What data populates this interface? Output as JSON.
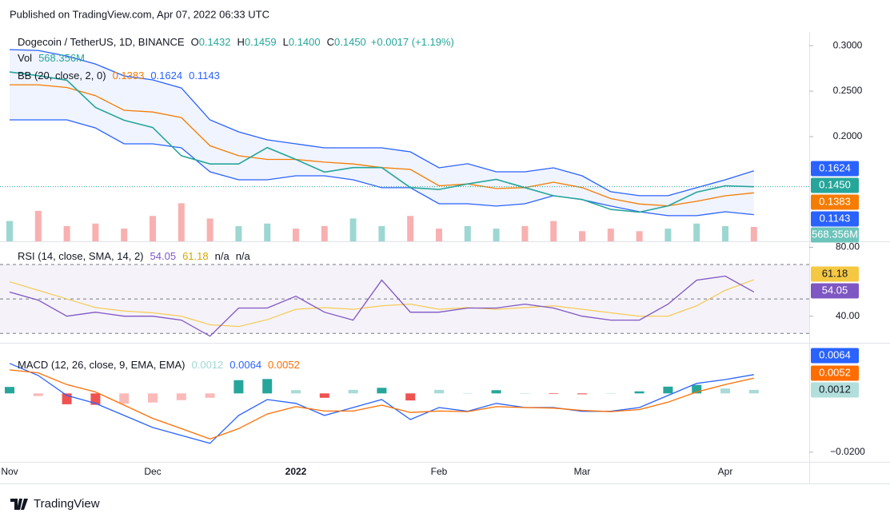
{
  "header": {
    "published": "Published on TradingView.com, Apr 07, 2022 06:33 UTC"
  },
  "footer": {
    "brand": "TradingView"
  },
  "chart_data": [
    {
      "type": "line",
      "title": "Dogecoin / TetherUS, 1D, BINANCE",
      "ohlc": [
        {
          "key": "O",
          "value": "0.1432"
        },
        {
          "key": "H",
          "value": "0.1459"
        },
        {
          "key": "L",
          "value": "0.1400"
        },
        {
          "key": "C",
          "value": "0.1450"
        }
      ],
      "change": "+0.0017 (+1.19%)",
      "categories": [
        "Nov",
        null,
        null,
        null,
        null,
        "Dec",
        null,
        null,
        null,
        null,
        "2022",
        null,
        null,
        null,
        null,
        "Feb",
        null,
        null,
        null,
        null,
        "Mar",
        null,
        null,
        null,
        null,
        "Apr",
        null
      ],
      "color": "#26a69a",
      "values": [
        0.271,
        0.267,
        0.262,
        0.232,
        0.218,
        0.21,
        0.179,
        0.17,
        0.17,
        0.188,
        0.175,
        0.161,
        0.166,
        0.166,
        0.144,
        0.142,
        0.148,
        0.153,
        0.144,
        0.135,
        0.131,
        0.12,
        0.117,
        0.124,
        0.139,
        0.146,
        0.145
      ],
      "value_labels": [
        null,
        null,
        null,
        null,
        null,
        null,
        null,
        null,
        null,
        null,
        null,
        null,
        null,
        null,
        null,
        null,
        null,
        null,
        null,
        null,
        null,
        null,
        null,
        null,
        null,
        null,
        "0.1450"
      ],
      "ylim": [
        0.085,
        0.315
      ],
      "yticks": [
        {
          "value": 0.3,
          "label": "0.3000"
        },
        {
          "value": 0.25,
          "label": "0.2500"
        },
        {
          "value": 0.2,
          "label": "0.2000"
        }
      ],
      "bb": {
        "name": "BB (20, close, 2, 0)",
        "series": [
          {
            "color": "#f57c00",
            "values": [
              0.257,
              0.257,
              0.254,
              0.245,
              0.229,
              0.227,
              0.221,
              0.19,
              0.179,
              0.175,
              0.175,
              0.172,
              0.17,
              0.166,
              0.164,
              0.146,
              0.148,
              0.143,
              0.144,
              0.15,
              0.144,
              0.132,
              0.126,
              0.124,
              0.129,
              0.135,
              0.1383
            ],
            "value_labels": [
              null,
              null,
              null,
              null,
              null,
              null,
              null,
              null,
              null,
              null,
              null,
              null,
              null,
              null,
              null,
              null,
              null,
              null,
              null,
              null,
              null,
              null,
              null,
              null,
              null,
              null,
              "0.1383"
            ]
          },
          {
            "color": "#2962ff",
            "values": [
              0.2956,
              0.2947,
              0.2886,
              0.2798,
              0.2667,
              0.2623,
              0.2535,
              0.2184,
              0.2053,
              0.1965,
              0.1921,
              0.1877,
              0.1877,
              0.1877,
              0.1833,
              0.1658,
              0.1702,
              0.1614,
              0.1614,
              0.1658,
              0.157,
              0.1395,
              0.1351,
              0.1351,
              0.1439,
              0.1526,
              0.1624
            ],
            "value_labels": [
              null,
              null,
              null,
              null,
              null,
              null,
              null,
              null,
              null,
              null,
              null,
              null,
              null,
              null,
              null,
              null,
              null,
              null,
              null,
              null,
              null,
              null,
              null,
              null,
              null,
              null,
              "0.1624"
            ]
          },
          {
            "color": "#2962ff",
            "values": [
              0.2184,
              0.2184,
              0.2184,
              0.2096,
              0.1921,
              0.1921,
              0.1877,
              0.1614,
              0.1526,
              0.1526,
              0.157,
              0.157,
              0.1526,
              0.1439,
              0.1439,
              0.1263,
              0.1263,
              0.1237,
              0.1263,
              0.1351,
              0.1307,
              0.1237,
              0.1175,
              0.1132,
              0.1132,
              0.1175,
              0.1143
            ],
            "value_labels": [
              null,
              null,
              null,
              null,
              null,
              null,
              null,
              null,
              null,
              null,
              null,
              null,
              null,
              null,
              null,
              null,
              null,
              null,
              null,
              null,
              null,
              null,
              null,
              null,
              null,
              null,
              "0.1143"
            ]
          }
        ]
      },
      "volume": {
        "name": "Vol",
        "color": "#26a69a",
        "negative_color": "#ef5350",
        "ylim": [
          0,
          4000000000
        ],
        "values": [
          800000000,
          1200000000,
          600000000,
          700000000,
          500000000,
          1000000000,
          1500000000,
          900000000,
          600000000,
          700000000,
          500000000,
          600000000,
          900000000,
          600000000,
          1000000000,
          500000000,
          600000000,
          500000000,
          600000000,
          800000000,
          400000000,
          500000000,
          400000000,
          500000000,
          700000000,
          600000000,
          568356000
        ],
        "value_labels": [
          null,
          null,
          null,
          null,
          null,
          null,
          null,
          null,
          null,
          null,
          null,
          null,
          null,
          null,
          null,
          null,
          null,
          null,
          null,
          null,
          null,
          null,
          null,
          null,
          null,
          null,
          "568.356M"
        ]
      }
    },
    {
      "type": "line",
      "title": "RSI (14, close, SMA, 14, 2)",
      "series": [
        {
          "color": "#7e57c2",
          "values": [
            54.0,
            49.3,
            40.0,
            42.3,
            40.0,
            40.0,
            37.7,
            28.4,
            44.7,
            44.7,
            51.6,
            42.3,
            37.7,
            60.9,
            42.3,
            42.3,
            44.7,
            44.7,
            47.0,
            44.7,
            40.0,
            37.7,
            37.7,
            47.0,
            60.9,
            63.3,
            54.05
          ],
          "value_labels": [
            null,
            null,
            null,
            null,
            null,
            null,
            null,
            null,
            null,
            null,
            null,
            null,
            null,
            null,
            null,
            null,
            null,
            null,
            null,
            null,
            null,
            null,
            null,
            null,
            null,
            null,
            "54.05"
          ]
        },
        {
          "color": "#f5c842",
          "values": [
            60,
            55,
            50,
            45,
            43,
            42,
            40,
            35,
            34,
            38,
            44,
            45,
            44,
            46,
            47,
            44,
            45,
            44,
            45,
            46,
            44,
            42,
            40,
            40,
            46,
            55,
            61.18
          ]
        }
      ],
      "extra_labels": [
        "n/a",
        "n/a"
      ],
      "bands": [
        70,
        50,
        30
      ],
      "ylim": [
        25,
        83
      ],
      "yticks": [
        {
          "value": 80,
          "label": "80.00"
        },
        {
          "value": 40,
          "label": "40.00"
        }
      ]
    },
    {
      "type": "macd",
      "title": "MACD (12, 26, close, 9, EMA, EMA)",
      "series": [
        {
          "type": "histogram",
          "color": "#26a69a",
          "negative_color": "#ef5350",
          "values": [
            0.0022,
            -0.0009,
            -0.0037,
            -0.0039,
            -0.0035,
            -0.0031,
            -0.0023,
            -0.0015,
            0.0045,
            0.0049,
            0.0011,
            -0.0015,
            0.0012,
            0.0019,
            -0.0024,
            0.0012,
            0.0001,
            0.0011,
            0.0,
            -0.0002,
            -0.0003,
            0.0001,
            0.0007,
            0.0023,
            0.0029,
            0.0017,
            0.0012
          ]
        },
        {
          "type": "line",
          "color": "#2962ff",
          "values": [
            0.0102,
            0.0061,
            -0.0007,
            -0.0034,
            -0.0075,
            -0.0116,
            -0.0143,
            -0.017,
            -0.0075,
            -0.0021,
            -0.0034,
            -0.0075,
            -0.0048,
            -0.0021,
            -0.0089,
            -0.0048,
            -0.0061,
            -0.0034,
            -0.0048,
            -0.0048,
            -0.0061,
            -0.0061,
            -0.0048,
            -0.0007,
            0.0034,
            0.0047,
            0.0064
          ]
        },
        {
          "type": "line",
          "color": "#ff6d00",
          "values": [
            0.008,
            0.007,
            0.003,
            0.0005,
            -0.004,
            -0.0085,
            -0.012,
            -0.0155,
            -0.012,
            -0.007,
            -0.0045,
            -0.006,
            -0.006,
            -0.004,
            -0.0065,
            -0.006,
            -0.0062,
            -0.0045,
            -0.0048,
            -0.005,
            -0.0058,
            -0.0062,
            -0.0055,
            -0.003,
            0.0005,
            0.003,
            0.0052
          ]
        }
      ],
      "ylim": [
        -0.0233,
        0.0164
      ],
      "yticks": [
        {
          "value": -0.02,
          "label": "−0.0200"
        }
      ]
    }
  ]
}
